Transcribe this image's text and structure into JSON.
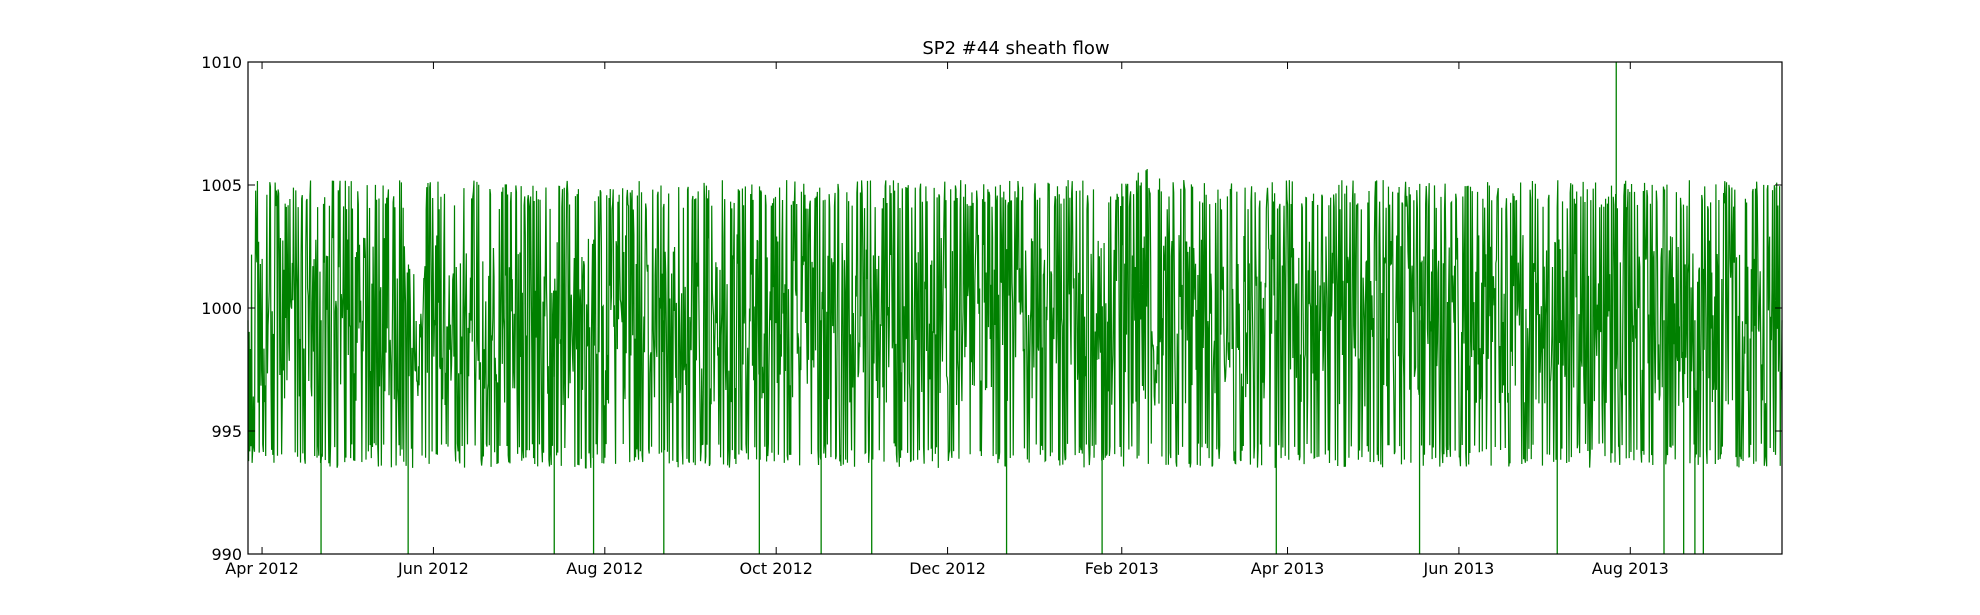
{
  "chart_data": {
    "type": "line",
    "title": "SP2 #44 sheath flow",
    "xlabel": "",
    "ylabel": "",
    "xlim": [
      "2012-03-27",
      "2013-09-24"
    ],
    "ylim": [
      990,
      1010
    ],
    "x_ticks": [
      "2012-04-01",
      "2012-06-01",
      "2012-08-01",
      "2012-10-01",
      "2012-12-01",
      "2013-02-01",
      "2013-04-01",
      "2013-06-01",
      "2013-08-01"
    ],
    "x_tick_labels": [
      "Apr 2012",
      "Jun 2012",
      "Aug 2012",
      "Oct 2012",
      "Dec 2012",
      "Feb 2013",
      "Apr 2013",
      "Jun 2013",
      "Aug 2013"
    ],
    "y_ticks": [
      990,
      995,
      1000,
      1005,
      1010
    ],
    "y_tick_labels": [
      "990",
      "995",
      "1000",
      "1005",
      "1010"
    ],
    "grid": false,
    "series": [
      {
        "color": "#008000",
        "band_min": 993.5,
        "band_max": 1005.2,
        "sampled_points": [
          [
            "2012-03-27",
            999.5
          ],
          [
            "2012-04-01",
            994.0
          ],
          [
            "2012-04-05",
            1004.5
          ],
          [
            "2012-04-10",
            996.0
          ],
          [
            "2012-04-15",
            1003.5
          ],
          [
            "2012-04-20",
            995.0
          ],
          [
            "2012-05-01",
            1004.3
          ],
          [
            "2012-05-10",
            994.5
          ],
          [
            "2012-05-20",
            1004.0
          ],
          [
            "2012-06-01",
            993.5
          ],
          [
            "2012-06-15",
            1004.8
          ],
          [
            "2012-07-01",
            994.0
          ],
          [
            "2012-07-15",
            1004.6
          ],
          [
            "2012-08-01",
            994.2
          ],
          [
            "2012-08-15",
            1005.0
          ],
          [
            "2012-09-01",
            994.0
          ],
          [
            "2012-09-15",
            1004.8
          ],
          [
            "2012-10-01",
            994.3
          ],
          [
            "2012-10-15",
            1004.9
          ],
          [
            "2012-11-01",
            994.0
          ],
          [
            "2012-11-15",
            1004.5
          ],
          [
            "2012-12-01",
            994.1
          ],
          [
            "2012-12-15",
            1004.4
          ],
          [
            "2013-01-01",
            994.2
          ],
          [
            "2013-01-15",
            1004.7
          ],
          [
            "2013-02-01",
            994.0
          ],
          [
            "2013-02-10",
            1005.7
          ],
          [
            "2013-03-01",
            994.3
          ],
          [
            "2013-03-15",
            1004.6
          ],
          [
            "2013-04-01",
            994.0
          ],
          [
            "2013-04-15",
            1004.8
          ],
          [
            "2013-05-01",
            994.2
          ],
          [
            "2013-05-15",
            1004.7
          ],
          [
            "2013-06-01",
            994.4
          ],
          [
            "2013-06-15",
            1004.9
          ],
          [
            "2013-07-01",
            994.0
          ],
          [
            "2013-07-15",
            1004.5
          ],
          [
            "2013-08-01",
            994.1
          ],
          [
            "2013-08-15",
            1004.8
          ],
          [
            "2013-09-01",
            994.3
          ],
          [
            "2013-09-15",
            1004.6
          ],
          [
            "2013-09-24",
            1001.0
          ]
        ],
        "spikes": [
          {
            "x": "2012-04-22",
            "y": 990
          },
          {
            "x": "2012-05-23",
            "y": 990
          },
          {
            "x": "2012-07-14",
            "y": 990
          },
          {
            "x": "2012-07-28",
            "y": 990
          },
          {
            "x": "2012-08-22",
            "y": 990
          },
          {
            "x": "2012-09-25",
            "y": 990
          },
          {
            "x": "2012-10-17",
            "y": 990
          },
          {
            "x": "2012-11-04",
            "y": 990
          },
          {
            "x": "2012-12-22",
            "y": 990
          },
          {
            "x": "2013-01-25",
            "y": 990
          },
          {
            "x": "2013-03-28",
            "y": 990
          },
          {
            "x": "2013-05-18",
            "y": 990
          },
          {
            "x": "2013-07-06",
            "y": 990
          },
          {
            "x": "2013-07-27",
            "y": 1010
          },
          {
            "x": "2013-08-13",
            "y": 990
          },
          {
            "x": "2013-08-20",
            "y": 990
          },
          {
            "x": "2013-08-24",
            "y": 990
          },
          {
            "x": "2013-08-27",
            "y": 990
          }
        ]
      }
    ]
  }
}
